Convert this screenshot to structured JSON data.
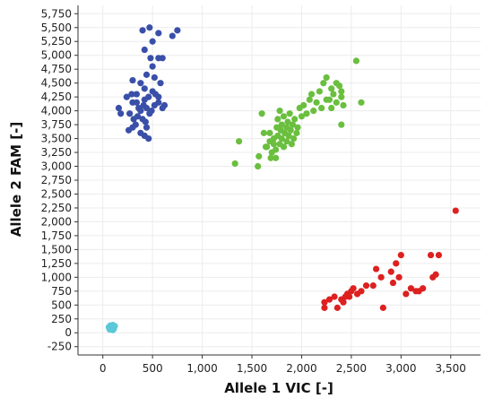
{
  "chart_data": {
    "type": "scatter",
    "xlabel": "Allele 1 VIC [-]",
    "ylabel": "Allele 2 FAM [-]",
    "xlim": [
      -250,
      3800
    ],
    "ylim": [
      -400,
      5900
    ],
    "x_ticks": [
      0,
      500,
      1000,
      1500,
      2000,
      2500,
      3000,
      3500
    ],
    "x_tick_labels": [
      "0",
      "500",
      "1,000",
      "1,500",
      "2,000",
      "2,500",
      "3,000",
      "3,500"
    ],
    "y_ticks": [
      -250,
      0,
      250,
      500,
      750,
      1000,
      1250,
      1500,
      1750,
      2000,
      2250,
      2500,
      2750,
      3000,
      3250,
      3500,
      3750,
      4000,
      4250,
      4500,
      4750,
      5000,
      5250,
      5500,
      5750
    ],
    "y_tick_labels": [
      "-250",
      "0",
      "250",
      "500",
      "750",
      "1,000",
      "1,250",
      "1,500",
      "1,750",
      "2,000",
      "2,250",
      "2,500",
      "2,750",
      "3,000",
      "3,250",
      "3,500",
      "3,750",
      "4,000",
      "4,250",
      "4,500",
      "4,750",
      "5,000",
      "5,250",
      "5,500",
      "5,750"
    ],
    "grid": true,
    "series": [
      {
        "color": "#3a4fa8",
        "points": [
          [
            400,
            5450
          ],
          [
            470,
            5500
          ],
          [
            560,
            5400
          ],
          [
            500,
            5250
          ],
          [
            700,
            5350
          ],
          [
            750,
            5450
          ],
          [
            420,
            5100
          ],
          [
            480,
            4950
          ],
          [
            560,
            4950
          ],
          [
            600,
            4950
          ],
          [
            500,
            4800
          ],
          [
            440,
            4650
          ],
          [
            520,
            4600
          ],
          [
            300,
            4550
          ],
          [
            380,
            4500
          ],
          [
            420,
            4400
          ],
          [
            580,
            4500
          ],
          [
            340,
            4300
          ],
          [
            420,
            4200
          ],
          [
            460,
            4250
          ],
          [
            500,
            4350
          ],
          [
            530,
            4300
          ],
          [
            560,
            4250
          ],
          [
            240,
            4250
          ],
          [
            290,
            4300
          ],
          [
            300,
            4150
          ],
          [
            340,
            4150
          ],
          [
            360,
            4050
          ],
          [
            380,
            4000
          ],
          [
            440,
            4050
          ],
          [
            490,
            4000
          ],
          [
            520,
            4100
          ],
          [
            560,
            4150
          ],
          [
            600,
            4050
          ],
          [
            620,
            4100
          ],
          [
            160,
            4050
          ],
          [
            180,
            3950
          ],
          [
            270,
            3950
          ],
          [
            310,
            3850
          ],
          [
            350,
            3900
          ],
          [
            400,
            3850
          ],
          [
            430,
            3800
          ],
          [
            440,
            3700
          ],
          [
            300,
            3700
          ],
          [
            260,
            3650
          ],
          [
            380,
            3600
          ],
          [
            420,
            3550
          ],
          [
            460,
            3500
          ],
          [
            330,
            3750
          ],
          [
            410,
            4100
          ],
          [
            470,
            3950
          ]
        ]
      },
      {
        "color": "#6abf3e",
        "points": [
          [
            1330,
            3050
          ],
          [
            1370,
            3450
          ],
          [
            1560,
            3000
          ],
          [
            1570,
            3180
          ],
          [
            1600,
            3950
          ],
          [
            1620,
            3600
          ],
          [
            1650,
            3350
          ],
          [
            1680,
            3450
          ],
          [
            1680,
            3600
          ],
          [
            1700,
            3250
          ],
          [
            1720,
            3400
          ],
          [
            1720,
            3500
          ],
          [
            1740,
            3300
          ],
          [
            1750,
            3700
          ],
          [
            1760,
            3550
          ],
          [
            1760,
            3850
          ],
          [
            1780,
            3400
          ],
          [
            1790,
            3650
          ],
          [
            1800,
            3500
          ],
          [
            1800,
            3750
          ],
          [
            1820,
            3350
          ],
          [
            1820,
            3900
          ],
          [
            1830,
            3600
          ],
          [
            1850,
            3450
          ],
          [
            1850,
            3700
          ],
          [
            1860,
            3800
          ],
          [
            1870,
            3550
          ],
          [
            1880,
            3950
          ],
          [
            1890,
            3650
          ],
          [
            1900,
            3400
          ],
          [
            1910,
            3750
          ],
          [
            1920,
            3500
          ],
          [
            1930,
            3850
          ],
          [
            1950,
            3600
          ],
          [
            1960,
            3700
          ],
          [
            1980,
            4050
          ],
          [
            2000,
            3900
          ],
          [
            2020,
            4100
          ],
          [
            2050,
            3950
          ],
          [
            2080,
            4200
          ],
          [
            2100,
            4300
          ],
          [
            2120,
            4000
          ],
          [
            2150,
            4150
          ],
          [
            2180,
            4350
          ],
          [
            2200,
            4050
          ],
          [
            2220,
            4500
          ],
          [
            2250,
            4600
          ],
          [
            2280,
            4200
          ],
          [
            2300,
            4400
          ],
          [
            2320,
            4300
          ],
          [
            2350,
            4500
          ],
          [
            2380,
            4450
          ],
          [
            2400,
            4350
          ],
          [
            2420,
            4100
          ],
          [
            2250,
            4200
          ],
          [
            2300,
            4050
          ],
          [
            2350,
            4150
          ],
          [
            2400,
            4250
          ],
          [
            2550,
            4900
          ],
          [
            2600,
            4150
          ],
          [
            1740,
            3150
          ],
          [
            1690,
            3150
          ],
          [
            1640,
            3350
          ],
          [
            1780,
            4000
          ],
          [
            2400,
            3750
          ]
        ]
      },
      {
        "color": "#dd2020",
        "points": [
          [
            3550,
            2200
          ],
          [
            2230,
            550
          ],
          [
            2230,
            450
          ],
          [
            2280,
            600
          ],
          [
            2330,
            650
          ],
          [
            2360,
            450
          ],
          [
            2400,
            600
          ],
          [
            2420,
            550
          ],
          [
            2440,
            650
          ],
          [
            2460,
            700
          ],
          [
            2480,
            650
          ],
          [
            2500,
            750
          ],
          [
            2520,
            800
          ],
          [
            2560,
            700
          ],
          [
            2600,
            750
          ],
          [
            2650,
            850
          ],
          [
            2720,
            850
          ],
          [
            2750,
            1150
          ],
          [
            2800,
            1000
          ],
          [
            2820,
            450
          ],
          [
            2900,
            1100
          ],
          [
            2920,
            900
          ],
          [
            2950,
            1250
          ],
          [
            2980,
            1000
          ],
          [
            3000,
            1400
          ],
          [
            3050,
            700
          ],
          [
            3100,
            800
          ],
          [
            3150,
            750
          ],
          [
            3180,
            750
          ],
          [
            3300,
            1400
          ],
          [
            3320,
            1000
          ],
          [
            3350,
            1050
          ],
          [
            3380,
            1400
          ],
          [
            3220,
            800
          ]
        ]
      },
      {
        "color": "#5bc8d8",
        "points": [
          [
            70,
            60
          ],
          [
            90,
            80
          ],
          [
            110,
            70
          ],
          [
            100,
            140
          ],
          [
            80,
            110
          ],
          [
            120,
            120
          ],
          [
            60,
            100
          ],
          [
            100,
            50
          ],
          [
            110,
            90
          ],
          [
            75,
            130
          ]
        ]
      }
    ]
  }
}
